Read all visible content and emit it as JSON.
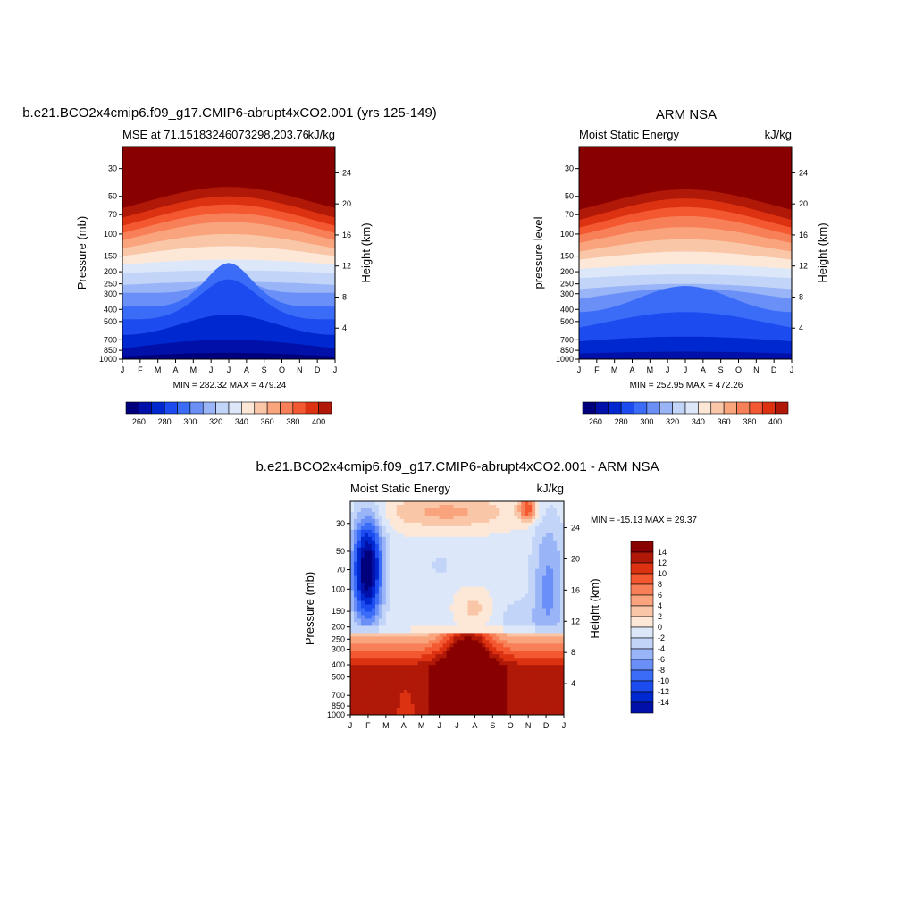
{
  "chart_data": [
    {
      "type": "heatmap",
      "id": "model",
      "title": "b.e21.BCO2x4cmip6.f09_g17.CMIP6-abrupt4xCO2.001 (yrs 125-149)",
      "left_label": "MSE at 71.15183246073298,203.76",
      "right_label": "kJ/kg",
      "ylabel": "Pressure (mb)",
      "ylabel2": "Height (km)",
      "x": [
        "J",
        "F",
        "M",
        "A",
        "M",
        "J",
        "J",
        "A",
        "S",
        "O",
        "N",
        "D",
        "J"
      ],
      "y_pressure_ticks": [
        30,
        50,
        70,
        100,
        150,
        200,
        250,
        300,
        400,
        500,
        700,
        850,
        1000
      ],
      "y_height_ticks": [
        4,
        8,
        12,
        16,
        20,
        24
      ],
      "stats": "MIN = 282.32 MAX = 479.24",
      "colorbar_labels": [
        "260",
        "280",
        "300",
        "320",
        "340",
        "360",
        "380",
        "400"
      ]
    },
    {
      "type": "heatmap",
      "id": "obs",
      "title": "ARM NSA",
      "left_label": "Moist Static Energy",
      "right_label": "kJ/kg",
      "ylabel": "pressure level",
      "ylabel2": "Height (km)",
      "x": [
        "J",
        "F",
        "M",
        "A",
        "M",
        "J",
        "J",
        "A",
        "S",
        "O",
        "N",
        "D",
        "J"
      ],
      "y_pressure_ticks": [
        30,
        50,
        70,
        100,
        150,
        200,
        250,
        300,
        400,
        500,
        700,
        850,
        1000
      ],
      "y_height_ticks": [
        4,
        8,
        12,
        16,
        20,
        24
      ],
      "stats": "MIN = 252.95 MAX = 472.26",
      "colorbar_labels": [
        "260",
        "280",
        "300",
        "320",
        "340",
        "360",
        "380",
        "400"
      ]
    },
    {
      "type": "heatmap",
      "id": "diff",
      "title": "b.e21.BCO2x4cmip6.f09_g17.CMIP6-abrupt4xCO2.001 - ARM NSA",
      "left_label": "Moist Static Energy",
      "right_label": "kJ/kg",
      "ylabel": "Pressure (mb)",
      "ylabel2": "Height (km)",
      "x": [
        "J",
        "F",
        "M",
        "A",
        "M",
        "J",
        "J",
        "A",
        "S",
        "O",
        "N",
        "D",
        "J"
      ],
      "y_pressure_ticks": [
        30,
        50,
        70,
        100,
        150,
        200,
        250,
        300,
        400,
        500,
        700,
        850,
        1000
      ],
      "y_height_ticks": [
        4,
        8,
        12,
        16,
        20,
        24
      ],
      "stats": "MIN = -15.13 MAX =  29.37",
      "colorbar_labels": [
        "14",
        "12",
        "10",
        "8",
        "6",
        "4",
        "2",
        "0",
        "-2",
        "-4",
        "-6",
        "-8",
        "-10",
        "-12",
        "-14"
      ]
    }
  ],
  "palette": [
    "#00007d",
    "#0010a8",
    "#0028d0",
    "#1c4cf0",
    "#3a6cf8",
    "#6a90f8",
    "#9ab4f8",
    "#c2d4f8",
    "#dce8fa",
    "#fde8d8",
    "#f9c6a8",
    "#f9a47c",
    "#f88058",
    "#f45830",
    "#dc3212",
    "#b01808",
    "#880000"
  ]
}
